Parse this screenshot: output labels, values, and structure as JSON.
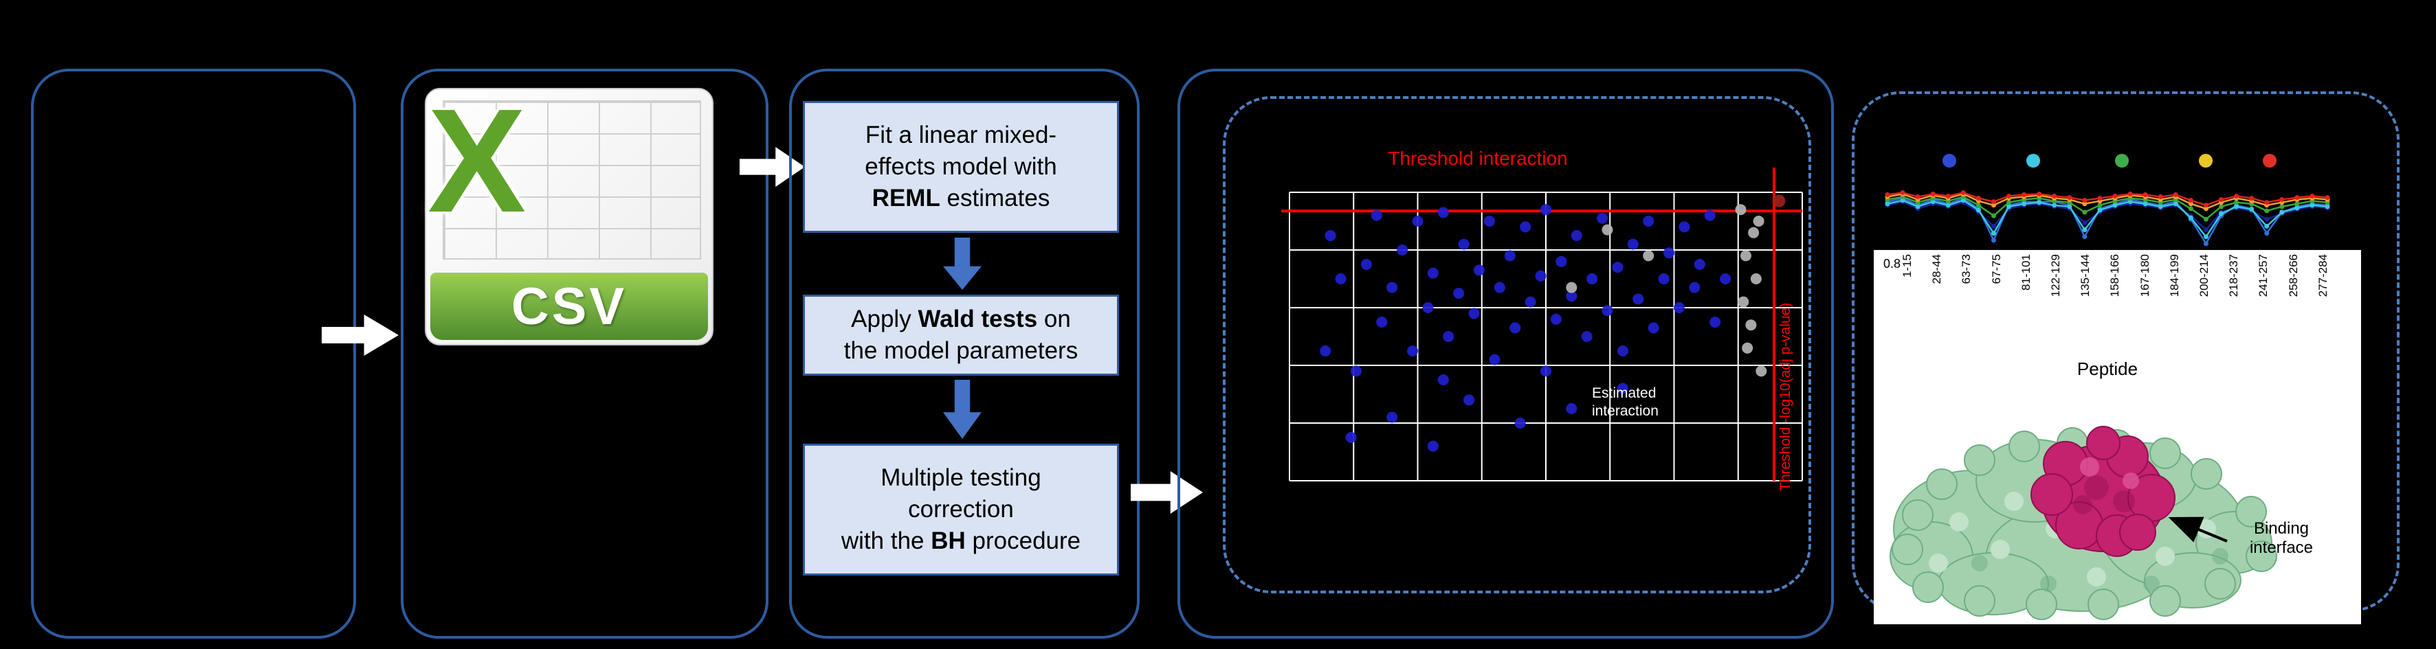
{
  "figure": {
    "csv": {
      "banner_label": "CSV",
      "x_glyph": "X"
    },
    "method_boxes": [
      {
        "pre": "Fit a linear mixed-\neffects model with\n",
        "bold": "REML",
        "post": " estimates"
      },
      {
        "pre": "Apply ",
        "bold": "Wald tests",
        "post": " on\nthe model parameters"
      },
      {
        "pre": "Multiple testing\ncorrection\nwith the ",
        "bold": "BH",
        "post": " procedure"
      }
    ],
    "volcano": {
      "title": "Threshold interaction",
      "side_label": "Threshold -log10(adj p-value)",
      "annotation": "Estimated\ninteraction"
    },
    "results": {
      "y_tick": "0.8",
      "x_axis_label": "Peptide",
      "peptide_labels": [
        "1-15",
        "28-44",
        "63-73",
        "67-75",
        "81-101",
        "122-129",
        "135-144",
        "158-166",
        "167-180",
        "184-199",
        "200-214",
        "218-237",
        "241-257",
        "258-266",
        "277-284"
      ],
      "binding_label": "Binding\ninterface"
    }
  },
  "colors": {
    "background": "#000000",
    "panel_border": "#2d5b9f",
    "dashed_border": "#4d7fc0",
    "box_fill": "#dae3f3",
    "box_border": "#2e5a9e",
    "arrow_white": "#ffffff",
    "arrow_blue": "#4472c4",
    "threshold_red": "#ff0000",
    "grid_white": "#ffffff",
    "csv_green": "#5fa32b",
    "protein_green": "#a3d1ae",
    "protein_magenta": "#c4216e"
  },
  "chart_data": [
    {
      "type": "scatter",
      "title": "Threshold interaction",
      "description": "Volcano-style scatter of peptide interactions; normalized 0-1 plot coordinates (y measured from top)",
      "grid": {
        "v_lines": 9,
        "h_lines": 6
      },
      "threshold_h": 0.065,
      "threshold_v": 0.945,
      "series": [
        {
          "name": "significant-interaction",
          "color": "#1f1fd0",
          "points": [
            [
              0.07,
              0.55
            ],
            [
              0.1,
              0.3
            ],
            [
              0.13,
              0.62
            ],
            [
              0.15,
              0.25
            ],
            [
              0.17,
              0.08
            ],
            [
              0.18,
              0.45
            ],
            [
              0.2,
              0.33
            ],
            [
              0.22,
              0.2
            ],
            [
              0.24,
              0.55
            ],
            [
              0.25,
              0.1
            ],
            [
              0.27,
              0.4
            ],
            [
              0.28,
              0.28
            ],
            [
              0.3,
              0.07
            ],
            [
              0.31,
              0.5
            ],
            [
              0.33,
              0.35
            ],
            [
              0.34,
              0.18
            ],
            [
              0.36,
              0.42
            ],
            [
              0.37,
              0.27
            ],
            [
              0.39,
              0.1
            ],
            [
              0.4,
              0.58
            ],
            [
              0.41,
              0.33
            ],
            [
              0.43,
              0.22
            ],
            [
              0.44,
              0.47
            ],
            [
              0.46,
              0.12
            ],
            [
              0.47,
              0.38
            ],
            [
              0.49,
              0.29
            ],
            [
              0.5,
              0.06
            ],
            [
              0.52,
              0.44
            ],
            [
              0.53,
              0.24
            ],
            [
              0.55,
              0.36
            ],
            [
              0.56,
              0.15
            ],
            [
              0.58,
              0.5
            ],
            [
              0.59,
              0.3
            ],
            [
              0.61,
              0.09
            ],
            [
              0.62,
              0.41
            ],
            [
              0.64,
              0.26
            ],
            [
              0.65,
              0.55
            ],
            [
              0.67,
              0.18
            ],
            [
              0.68,
              0.37
            ],
            [
              0.7,
              0.1
            ],
            [
              0.71,
              0.47
            ],
            [
              0.73,
              0.3
            ],
            [
              0.74,
              0.21
            ],
            [
              0.76,
              0.4
            ],
            [
              0.77,
              0.12
            ],
            [
              0.79,
              0.33
            ],
            [
              0.8,
              0.25
            ],
            [
              0.82,
              0.08
            ],
            [
              0.83,
              0.45
            ],
            [
              0.85,
              0.3
            ],
            [
              0.12,
              0.85
            ],
            [
              0.2,
              0.78
            ],
            [
              0.28,
              0.88
            ],
            [
              0.35,
              0.72
            ],
            [
              0.45,
              0.8
            ],
            [
              0.55,
              0.75
            ],
            [
              0.3,
              0.65
            ],
            [
              0.5,
              0.62
            ],
            [
              0.65,
              0.68
            ],
            [
              0.08,
              0.15
            ]
          ]
        },
        {
          "name": "not-significant",
          "color": "#b5b5b5",
          "points": [
            [
              0.88,
              0.06
            ],
            [
              0.905,
              0.14
            ],
            [
              0.89,
              0.22
            ],
            [
              0.91,
              0.3
            ],
            [
              0.885,
              0.38
            ],
            [
              0.9,
              0.46
            ],
            [
              0.893,
              0.54
            ],
            [
              0.915,
              0.1
            ],
            [
              0.62,
              0.13
            ],
            [
              0.55,
              0.33
            ],
            [
              0.7,
              0.22
            ],
            [
              0.92,
              0.62
            ]
          ]
        },
        {
          "name": "threshold-crossing",
          "color": "#a02020",
          "points": [
            [
              0.955,
              0.03
            ]
          ]
        }
      ]
    },
    {
      "type": "line",
      "description": "Per-peptide deuterium-uptake profile lines with condition dots above; y normalized 0-1 from band top",
      "top_dot_colors": [
        "#2f4bd6",
        "#3fc8e4",
        "#3fae49",
        "#e8c829",
        "#e03127"
      ],
      "x_count": 30,
      "series": [
        {
          "name": "series-navy",
          "color": "#16239d",
          "y": [
            0.4,
            0.35,
            0.45,
            0.38,
            0.42,
            0.36,
            0.5,
            0.7,
            0.45,
            0.4,
            0.38,
            0.42,
            0.45,
            0.65,
            0.5,
            0.42,
            0.38,
            0.4,
            0.44,
            0.4,
            0.55,
            0.75,
            0.5,
            0.44,
            0.48,
            0.6,
            0.52,
            0.46,
            0.42,
            0.44
          ]
        },
        {
          "name": "series-blue",
          "color": "#2e6fdd",
          "y": [
            0.35,
            0.3,
            0.4,
            0.32,
            0.38,
            0.3,
            0.45,
            0.9,
            0.4,
            0.35,
            0.35,
            0.35,
            0.4,
            0.85,
            0.45,
            0.38,
            0.32,
            0.36,
            0.4,
            0.35,
            0.6,
            0.95,
            0.55,
            0.4,
            0.45,
            0.8,
            0.5,
            0.42,
            0.38,
            0.4
          ]
        },
        {
          "name": "series-cyan",
          "color": "#3ec6e0",
          "y": [
            0.38,
            0.33,
            0.42,
            0.35,
            0.4,
            0.33,
            0.47,
            0.8,
            0.42,
            0.38,
            0.36,
            0.4,
            0.42,
            0.75,
            0.47,
            0.4,
            0.35,
            0.38,
            0.42,
            0.38,
            0.58,
            0.85,
            0.52,
            0.42,
            0.46,
            0.7,
            0.5,
            0.44,
            0.4,
            0.42
          ]
        },
        {
          "name": "series-green",
          "color": "#3aa83a",
          "y": [
            0.32,
            0.28,
            0.36,
            0.3,
            0.34,
            0.28,
            0.4,
            0.55,
            0.36,
            0.32,
            0.3,
            0.34,
            0.36,
            0.5,
            0.4,
            0.34,
            0.3,
            0.32,
            0.36,
            0.32,
            0.45,
            0.6,
            0.42,
            0.36,
            0.38,
            0.48,
            0.42,
            0.38,
            0.34,
            0.36
          ]
        },
        {
          "name": "series-orange",
          "color": "#f2a02d",
          "y": [
            0.28,
            0.24,
            0.32,
            0.26,
            0.3,
            0.24,
            0.34,
            0.4,
            0.3,
            0.28,
            0.26,
            0.3,
            0.32,
            0.38,
            0.34,
            0.3,
            0.26,
            0.28,
            0.32,
            0.28,
            0.38,
            0.45,
            0.36,
            0.3,
            0.34,
            0.4,
            0.36,
            0.32,
            0.3,
            0.32
          ]
        },
        {
          "name": "series-red",
          "color": "#e02020",
          "y": [
            0.25,
            0.22,
            0.28,
            0.24,
            0.27,
            0.22,
            0.3,
            0.35,
            0.27,
            0.25,
            0.24,
            0.27,
            0.29,
            0.33,
            0.3,
            0.27,
            0.24,
            0.25,
            0.28,
            0.25,
            0.33,
            0.4,
            0.32,
            0.27,
            0.3,
            0.36,
            0.32,
            0.29,
            0.27,
            0.29
          ]
        }
      ]
    }
  ]
}
